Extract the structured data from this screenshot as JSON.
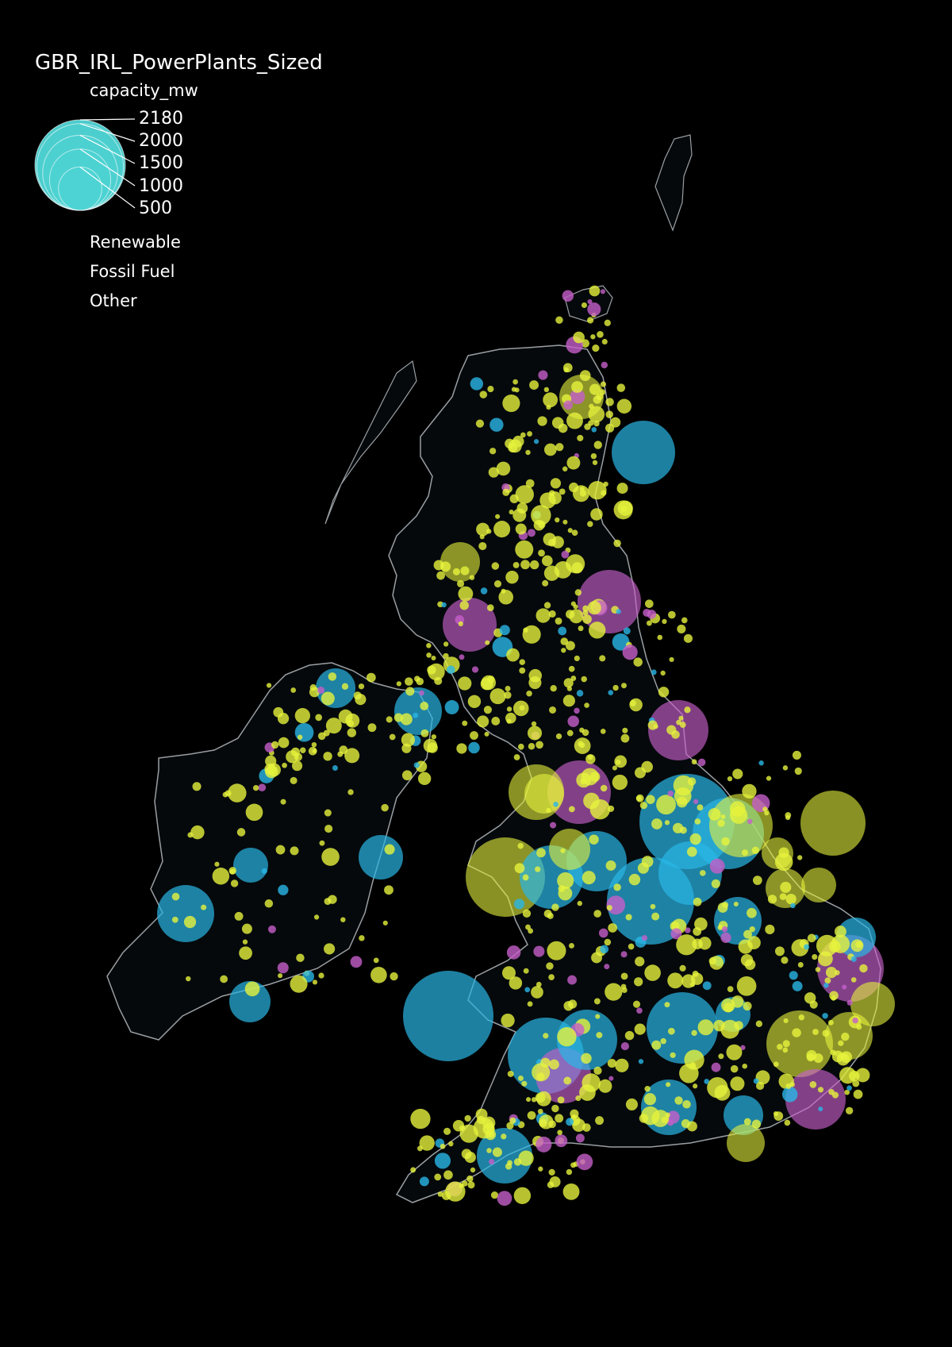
{
  "legend": {
    "title": "GBR_IRL_PowerPlants_Sized",
    "size_field": "capacity_mw",
    "size_values": [
      "2180",
      "2000",
      "1500",
      "1000",
      "500"
    ],
    "categories": [
      {
        "label": "Renewable",
        "color": "#e6f23c"
      },
      {
        "label": "Fossil Fuel",
        "color": "#29b6e6"
      },
      {
        "label": "Other",
        "color": "#c65fc9"
      }
    ],
    "size_symbol_color": "#4fd6d6"
  },
  "colors": {
    "background": "#000000",
    "land": "#05090c",
    "border": "#9a9fa3"
  }
}
